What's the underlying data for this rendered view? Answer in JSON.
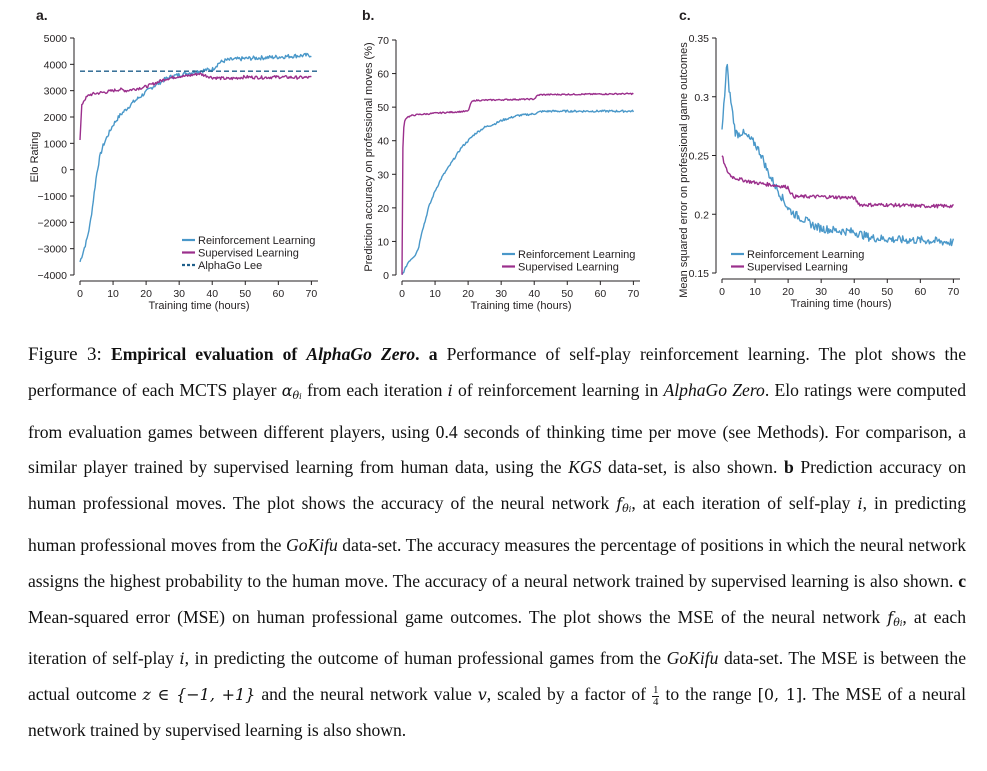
{
  "chart_data": [
    {
      "type": "line",
      "panel": "a.",
      "xlabel": "Training time (hours)",
      "ylabel": "Elo Rating",
      "xlim": [
        0,
        72
      ],
      "ylim": [
        -4000,
        5000
      ],
      "xticks": [
        "0",
        "10",
        "20",
        "30",
        "40",
        "50",
        "60",
        "70"
      ],
      "yticks": [
        "−4000",
        "−3000",
        "−2000",
        "−1000",
        "0",
        "1000",
        "2000",
        "3000",
        "4000",
        "5000"
      ],
      "legend_position": "bottom-right",
      "series": [
        {
          "name": "Reinforcement Learning",
          "color": "#4a98c9",
          "style": "solid",
          "noise": 80,
          "x": [
            0,
            1,
            2,
            3,
            4,
            5,
            6,
            7,
            8,
            10,
            12,
            14,
            16,
            18,
            20,
            22,
            24,
            26,
            28,
            30,
            32,
            34,
            36,
            38,
            40,
            42,
            44,
            46,
            48,
            50,
            55,
            60,
            65,
            70
          ],
          "y": [
            -3500,
            -3100,
            -2700,
            -2100,
            -1200,
            -200,
            500,
            900,
            1200,
            1700,
            2050,
            2300,
            2550,
            2750,
            2950,
            3150,
            3300,
            3450,
            3550,
            3600,
            3650,
            3700,
            3750,
            3780,
            3800,
            4050,
            4150,
            4180,
            4200,
            4220,
            4250,
            4280,
            4320,
            4350
          ]
        },
        {
          "name": "Supervised Learning",
          "color": "#9b2f8c",
          "style": "solid",
          "noise": 60,
          "x": [
            0,
            0.5,
            1,
            2,
            3,
            5,
            8,
            10,
            12,
            14,
            16,
            18,
            20,
            22,
            24,
            26,
            28,
            30,
            32,
            34,
            36,
            40,
            45,
            50,
            55,
            60,
            65,
            70
          ],
          "y": [
            1100,
            2400,
            2600,
            2750,
            2850,
            2900,
            2950,
            3000,
            3050,
            3000,
            3050,
            3100,
            3150,
            3250,
            3350,
            3450,
            3500,
            3550,
            3550,
            3600,
            3650,
            3500,
            3450,
            3520,
            3500,
            3520,
            3500,
            3500
          ]
        },
        {
          "name": "AlphaGo Lee",
          "color": "#1f5f8b",
          "style": "dashed",
          "noise": 0,
          "x": [
            0,
            72
          ],
          "y": [
            3739,
            3739
          ]
        }
      ]
    },
    {
      "type": "line",
      "panel": "b.",
      "xlabel": "Training time (hours)",
      "ylabel": "Prediction accuracy on professional moves (%)",
      "xlim": [
        0,
        72
      ],
      "ylim": [
        0,
        70
      ],
      "xticks": [
        "0",
        "10",
        "20",
        "30",
        "40",
        "50",
        "60",
        "70"
      ],
      "yticks": [
        "0",
        "10",
        "20",
        "30",
        "40",
        "50",
        "60",
        "70"
      ],
      "legend_position": "bottom-right",
      "series": [
        {
          "name": "Reinforcement Learning",
          "color": "#4a98c9",
          "style": "solid",
          "noise": 0.3,
          "x": [
            0,
            1,
            2,
            3,
            4,
            5,
            6,
            7,
            8,
            10,
            12,
            14,
            16,
            18,
            20,
            22,
            25,
            28,
            30,
            35,
            40,
            42,
            45,
            50,
            55,
            60,
            65,
            70
          ],
          "y": [
            0,
            2,
            4,
            5,
            6,
            8,
            13,
            16,
            20,
            25,
            29,
            32,
            35,
            38,
            40,
            42,
            44,
            45,
            46,
            47.5,
            48,
            48.7,
            48.8,
            48.8,
            48.8,
            48.8,
            48.8,
            48.8
          ]
        },
        {
          "name": "Supervised Learning",
          "color": "#9b2f8c",
          "style": "solid",
          "noise": 0.2,
          "x": [
            0,
            0.3,
            0.8,
            1.5,
            3,
            5,
            8,
            10,
            15,
            20,
            21,
            22,
            30,
            40,
            41,
            42,
            50,
            60,
            70
          ],
          "y": [
            0,
            42,
            46,
            47,
            47.5,
            47.8,
            48,
            48.2,
            48.5,
            48.8,
            51.5,
            52,
            52.2,
            52.4,
            53.5,
            53.7,
            53.8,
            53.9,
            54
          ]
        }
      ]
    },
    {
      "type": "line",
      "panel": "c.",
      "xlabel": "Training time (hours)",
      "ylabel": "Mean squared error on professional game outcomes",
      "xlim": [
        0,
        72
      ],
      "ylim": [
        0.15,
        0.35
      ],
      "xticks": [
        "0",
        "10",
        "20",
        "30",
        "40",
        "50",
        "60",
        "70"
      ],
      "yticks": [
        "0.15",
        "0.2",
        "0.25",
        "0.3",
        "0.35"
      ],
      "legend_position": "bottom-left",
      "series": [
        {
          "name": "Reinforcement Learning",
          "color": "#4a98c9",
          "style": "solid",
          "noise": 0.0035,
          "x": [
            0,
            1,
            1.5,
            2,
            3,
            4,
            5,
            6,
            8,
            10,
            12,
            14,
            16,
            18,
            20,
            22,
            25,
            28,
            30,
            35,
            40,
            45,
            50,
            55,
            60,
            65,
            70
          ],
          "y": [
            0.27,
            0.31,
            0.33,
            0.31,
            0.29,
            0.27,
            0.268,
            0.27,
            0.265,
            0.26,
            0.25,
            0.235,
            0.225,
            0.215,
            0.205,
            0.2,
            0.195,
            0.19,
            0.188,
            0.186,
            0.185,
            0.18,
            0.179,
            0.178,
            0.178,
            0.177,
            0.176
          ]
        },
        {
          "name": "Supervised Learning",
          "color": "#9b2f8c",
          "style": "solid",
          "noise": 0.0015,
          "x": [
            0,
            1,
            2,
            3,
            5,
            8,
            10,
            12,
            15,
            20,
            21,
            22,
            30,
            40,
            41,
            42,
            50,
            60,
            70
          ],
          "y": [
            0.25,
            0.24,
            0.235,
            0.232,
            0.23,
            0.228,
            0.227,
            0.226,
            0.225,
            0.223,
            0.217,
            0.215,
            0.215,
            0.214,
            0.21,
            0.208,
            0.208,
            0.207,
            0.207
          ]
        }
      ]
    }
  ],
  "caption": {
    "figure_label": "Figure 3:",
    "title_lead": "Empirical evaluation of ",
    "title_italic": "AlphaGo Zero",
    "title_end": ".",
    "a_letter": "a",
    "a_text_1": " Performance of self-play reinforcement learning. The plot shows the performance of each MCTS player ",
    "a_alpha": "α",
    "a_theta": "θ",
    "a_i_sub": "i",
    "a_text_2": " from each iteration ",
    "a_i": "i",
    "a_text_3": " of reinforcement learning in ",
    "a_alphago_zero": "AlphaGo Zero",
    "a_text_4": ". Elo ratings were computed from evaluation games between different players, using 0.4 seconds of thinking time per move (see Methods). For comparison, a similar player trained by supervised learning from human data, using the ",
    "a_kgs": "KGS",
    "a_text_5": " data-set, is also shown. ",
    "b_letter": "b",
    "b_text_1": " Prediction accuracy on human professional moves. The plot shows the accuracy of the neural network ",
    "b_f": "f",
    "b_theta": "θ",
    "b_i_sub": "i",
    "b_text_2": ", at each iteration of self-play ",
    "b_i": "i",
    "b_text_3": ", in predicting human professional moves from the ",
    "b_gokifu": "GoKifu",
    "b_text_4": " data-set. The accuracy measures the percentage of positions in which the neural network assigns the highest probability to the human move. The accuracy of a neural network trained by supervised learning is also shown. ",
    "c_letter": "c",
    "c_text_1": " Mean-squared error (MSE) on human professional game outcomes. The plot shows the MSE of the neural network ",
    "c_f": "f",
    "c_theta": "θ",
    "c_i_sub": "i",
    "c_text_2": ", at each iteration of self-play ",
    "c_i": "i",
    "c_text_3": ", in predicting the outcome of human professional games from the ",
    "c_gokifu": "GoKifu",
    "c_text_4": " data-set. The MSE is between the actual outcome ",
    "c_z_math": "z ∈ {−1, +1}",
    "c_text_5": " and the neural network value ",
    "c_v": "v",
    "c_text_6": ", scaled by a factor of ",
    "c_frac_num": "1",
    "c_frac_den": "4",
    "c_text_7": " to the range ",
    "c_range": "[0, 1]",
    "c_text_8": ". The MSE of a neural network trained by supervised learning is also shown."
  }
}
